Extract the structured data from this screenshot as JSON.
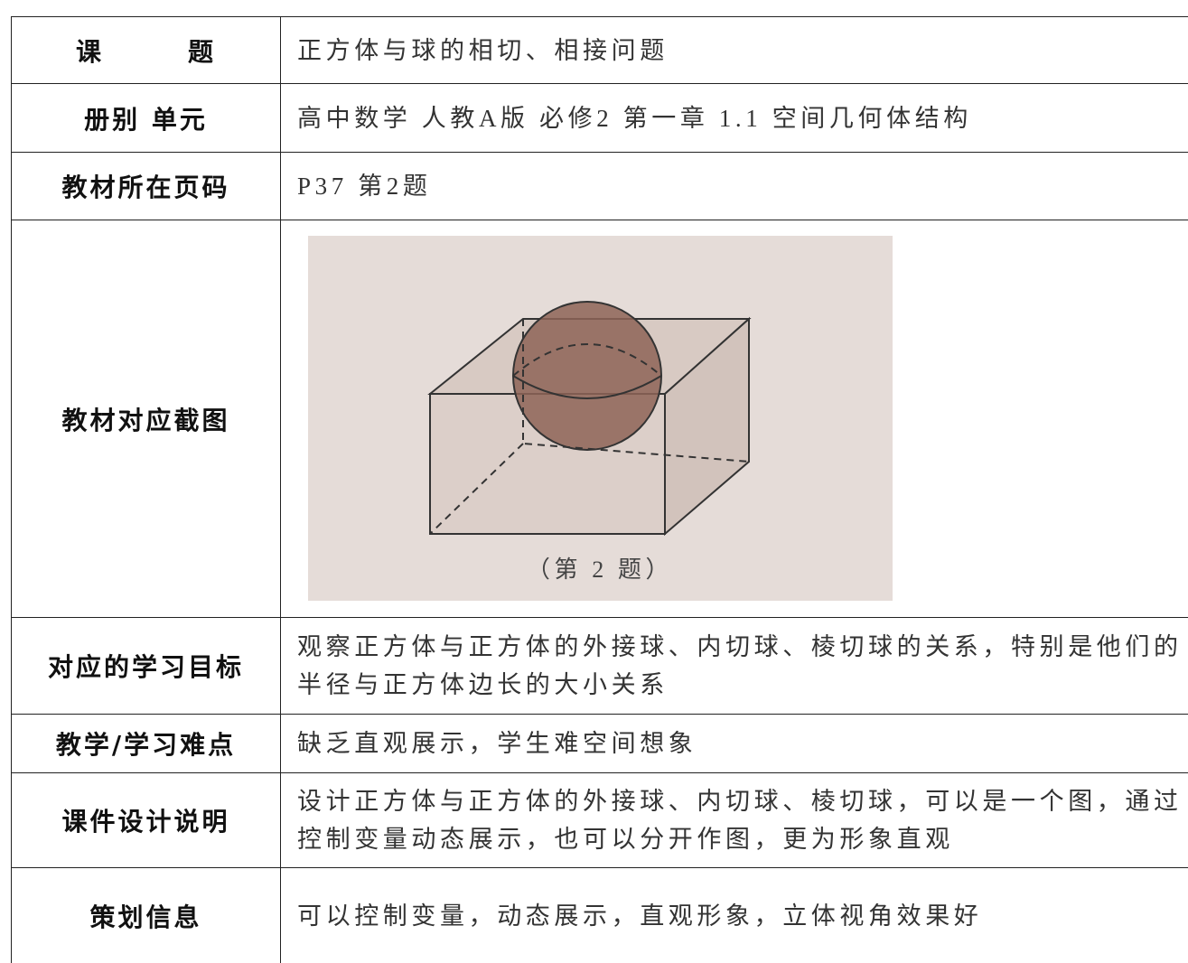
{
  "table": {
    "rows": [
      {
        "label": "课　　　题",
        "lines": [
          "正方体与球的相切、相接问题"
        ]
      },
      {
        "label": "册别 单元",
        "lines": [
          "高中数学 人教A版 必修2  第一章 1.1 空间几何体结构"
        ]
      },
      {
        "label": "教材所在页码",
        "lines": [
          "P37 第2题"
        ]
      },
      {
        "label": "教材对应截图",
        "figure_caption": "（第 2 题）"
      },
      {
        "label": "对应的学习目标",
        "lines": [
          "观察正方体与正方体的外接球、内切球、棱切球的关系，特别是他们的",
          "半径与正方体边长的大小关系"
        ]
      },
      {
        "label": "教学/学习难点",
        "lines": [
          "缺乏直观展示，学生难空间想象"
        ]
      },
      {
        "label": "课件设计说明",
        "lines": [
          "设计正方体与正方体的外接球、内切球、棱切球，可以是一个图，通过",
          "控制变量动态展示，也可以分开作图，更为形象直观"
        ]
      },
      {
        "label": "策划信息",
        "lines": [
          "可以控制变量，动态展示，直观形象，立体视角效果好"
        ]
      }
    ]
  }
}
